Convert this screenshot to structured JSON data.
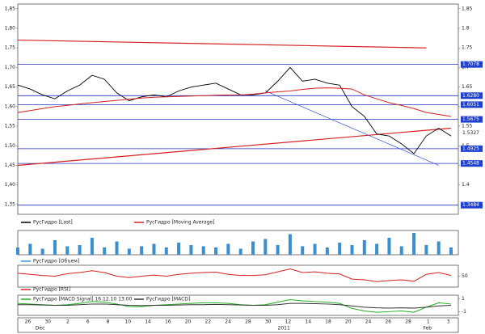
{
  "chart_data": [
    {
      "type": "line",
      "series": [
        {
          "name": "РусГидро [Last]",
          "color": "#000000",
          "values": [
            1.655,
            1.645,
            1.63,
            1.62,
            1.64,
            1.655,
            1.68,
            1.67,
            1.635,
            1.615,
            1.625,
            1.63,
            1.625,
            1.64,
            1.65,
            1.655,
            1.66,
            1.645,
            1.63,
            1.63,
            1.635,
            1.665,
            1.7,
            1.665,
            1.67,
            1.66,
            1.655,
            1.6,
            1.575,
            1.53,
            1.525,
            1.505,
            1.48,
            1.525,
            1.545,
            1.525
          ]
        },
        {
          "name": "РусГидро [Moving Average]",
          "color": "#d62020",
          "values": [
            1.585,
            1.59,
            1.595,
            1.6,
            1.603,
            1.607,
            1.61,
            1.613,
            1.616,
            1.619,
            1.622,
            1.624,
            1.625,
            1.626,
            1.627,
            1.628,
            1.629,
            1.63,
            1.63,
            1.632,
            1.635,
            1.638,
            1.64,
            1.644,
            1.647,
            1.648,
            1.647,
            1.645,
            1.63,
            1.62,
            1.61,
            1.603,
            1.595,
            1.585,
            1.58,
            1.575
          ]
        }
      ],
      "ylim": [
        1.325,
        1.862
      ],
      "yticks": [
        {
          "value": 1.35,
          "label": "1,35"
        },
        {
          "value": 1.4,
          "label": "1,40"
        },
        {
          "value": 1.45,
          "label": "1,45"
        },
        {
          "value": 1.5,
          "label": "1,50"
        },
        {
          "value": 1.55,
          "label": "1,55"
        },
        {
          "value": 1.6,
          "label": "1,60"
        },
        {
          "value": 1.65,
          "label": "1,65"
        },
        {
          "value": 1.7,
          "label": "1,70"
        },
        {
          "value": 1.75,
          "label": "1,75"
        },
        {
          "value": 1.8,
          "label": "1,80"
        },
        {
          "value": 1.85,
          "label": "1,85"
        }
      ],
      "y2ticks": [
        1.4,
        1.45,
        1.5,
        1.55,
        1.6,
        1.65,
        1.7,
        1.75,
        1.8,
        1.85
      ],
      "levels": [
        {
          "value": 1.7078,
          "label": "1.7078"
        },
        {
          "value": 1.628,
          "label": "1.6280"
        },
        {
          "value": 1.6051,
          "label": "1.6051"
        },
        {
          "value": 1.5675,
          "label": "1.5675"
        },
        {
          "value": 1.4925,
          "label": "1.4925"
        },
        {
          "value": 1.4548,
          "label": "1.4548"
        },
        {
          "value": 1.3484,
          "label": "1.3484"
        }
      ],
      "last_label": {
        "value": 1.5327,
        "label": "1.5327"
      },
      "trendlines": [
        {
          "color": "#d62020",
          "values": [
            1.77,
            1.75
          ],
          "index": [
            0,
            33
          ]
        },
        {
          "color": "#d62020",
          "values": [
            1.45,
            1.545
          ],
          "index": [
            0,
            35
          ]
        },
        {
          "color": "#3050e0",
          "values": [
            1.64,
            1.45
          ],
          "index": [
            20,
            34
          ]
        }
      ],
      "date_labels": [
        "26",
        "30",
        "2",
        "6",
        "8",
        "10",
        "14",
        "16",
        "20",
        "22",
        "24",
        "28",
        "30",
        "12",
        "14",
        "18",
        "20",
        "24",
        "26",
        "28",
        "1",
        "3"
      ],
      "date_groups": [
        "Dec",
        "2011",
        "Feb"
      ]
    },
    {
      "type": "bar",
      "series": [
        {
          "name": "РусГидро [Объем]",
          "color": "#3a8fd0",
          "values": [
            30,
            45,
            25,
            60,
            35,
            40,
            70,
            30,
            55,
            25,
            35,
            45,
            30,
            50,
            40,
            35,
            30,
            45,
            25,
            55,
            65,
            40,
            85,
            35,
            45,
            30,
            50,
            40,
            60,
            45,
            70,
            35,
            90,
            40,
            55,
            30
          ]
        }
      ],
      "ylim": [
        0,
        100
      ]
    },
    {
      "type": "line",
      "series": [
        {
          "name": "РусГидро [RSI]",
          "color": "#d62020",
          "values": [
            58,
            55,
            52,
            50,
            57,
            60,
            65,
            60,
            50,
            46,
            50,
            53,
            50,
            55,
            58,
            60,
            61,
            55,
            52,
            52,
            54,
            62,
            70,
            60,
            62,
            58,
            56,
            42,
            40,
            35,
            38,
            40,
            36,
            55,
            60,
            52
          ]
        }
      ],
      "ylim": [
        20,
        80
      ],
      "y2ticks": [
        50
      ]
    },
    {
      "type": "line",
      "series": [
        {
          "name": "РусГидро [MACD Signal] 16.12.10 13:00",
          "color": "#20b020",
          "values": [
            0.3,
            0.2,
            0.1,
            0,
            0.1,
            0.3,
            0.6,
            0.5,
            0.2,
            -0.2,
            -0.2,
            0,
            0.1,
            0.2,
            0.3,
            0.4,
            0.4,
            0.3,
            0.1,
            0,
            0.1,
            0.5,
            0.9,
            0.7,
            0.6,
            0.5,
            0.3,
            -0.5,
            -0.9,
            -1.1,
            -1,
            -0.9,
            -1.1,
            -0.3,
            0.4,
            0.2
          ]
        },
        {
          "name": "РусГидро [MACD]",
          "color": "#333333",
          "values": [
            0.1,
            0.1,
            0.05,
            0,
            0,
            0.1,
            0.2,
            0.2,
            0.1,
            0,
            -0.05,
            0,
            0,
            0.05,
            0.1,
            0.1,
            0.15,
            0.1,
            0.05,
            0,
            0,
            0.1,
            0.3,
            0.3,
            0.25,
            0.2,
            0.1,
            -0.1,
            -0.3,
            -0.4,
            -0.45,
            -0.4,
            -0.45,
            -0.3,
            -0.1,
            0
          ]
        }
      ],
      "ylim": [
        -1.6,
        1.6
      ],
      "y2ticks": [
        1,
        -1
      ]
    }
  ]
}
